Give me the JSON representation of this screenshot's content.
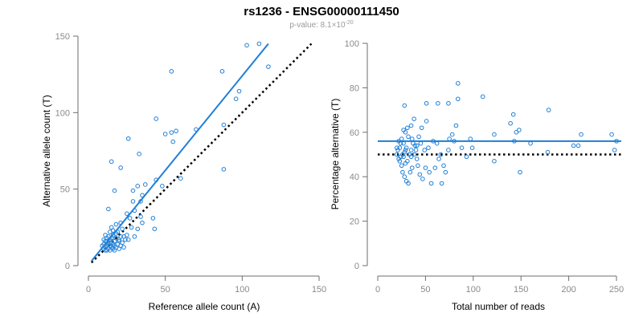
{
  "title": "rs1236 - ENSG00000111450",
  "subtitle_prefix": "p-value: 8.1×10",
  "subtitle_exp": "-20",
  "colors": {
    "points": "#1f7fd6",
    "fit": "#1f7fd6",
    "reference": "#000000",
    "axis": "#6d6d6d"
  },
  "chart_data": [
    {
      "type": "scatter",
      "xlabel": "Reference allele count (A)",
      "ylabel": "Alternative allele count (T)",
      "xlim": [
        0,
        150
      ],
      "ylim": [
        0,
        150
      ],
      "xticks": [
        "0",
        "50",
        "100",
        "150"
      ],
      "yticks": [
        "0",
        "50",
        "100",
        "150"
      ],
      "grid": false,
      "fit_line": {
        "x": [
          2,
          117
        ],
        "y": [
          3,
          145
        ]
      },
      "reference_line": {
        "x": [
          2,
          145
        ],
        "y": [
          2,
          145
        ]
      },
      "points": [
        [
          111,
          145
        ],
        [
          103,
          144
        ],
        [
          117,
          130
        ],
        [
          98,
          114
        ],
        [
          96,
          109
        ],
        [
          87,
          127
        ],
        [
          88,
          92
        ],
        [
          88,
          63
        ],
        [
          54,
          127
        ],
        [
          70,
          89
        ],
        [
          57,
          88
        ],
        [
          54,
          87
        ],
        [
          55,
          81
        ],
        [
          50,
          86
        ],
        [
          44,
          96
        ],
        [
          26,
          83
        ],
        [
          33,
          73
        ],
        [
          15,
          68
        ],
        [
          21,
          64
        ],
        [
          37,
          53
        ],
        [
          44,
          56
        ],
        [
          60,
          57
        ],
        [
          48,
          52
        ],
        [
          32,
          52
        ],
        [
          29,
          49
        ],
        [
          17,
          49
        ],
        [
          35,
          46
        ],
        [
          34,
          42
        ],
        [
          29,
          42
        ],
        [
          30,
          36
        ],
        [
          34,
          32
        ],
        [
          42,
          31
        ],
        [
          25,
          34
        ],
        [
          27,
          31
        ],
        [
          35,
          28
        ],
        [
          21,
          28
        ],
        [
          18,
          27
        ],
        [
          13,
          37
        ],
        [
          28,
          25
        ],
        [
          32,
          24
        ],
        [
          43,
          24
        ],
        [
          22,
          24
        ],
        [
          25,
          20
        ],
        [
          19,
          22
        ],
        [
          15,
          25
        ],
        [
          26,
          17
        ],
        [
          30,
          19
        ],
        [
          20,
          17
        ],
        [
          23,
          19
        ],
        [
          18,
          18
        ],
        [
          14,
          22
        ],
        [
          16,
          20
        ],
        [
          11,
          20
        ],
        [
          12,
          18
        ],
        [
          14,
          17
        ],
        [
          15,
          15
        ],
        [
          11,
          16
        ],
        [
          13,
          15
        ],
        [
          10,
          14
        ],
        [
          12,
          13
        ],
        [
          14,
          13
        ],
        [
          16,
          14
        ],
        [
          11,
          12
        ],
        [
          13,
          11
        ],
        [
          15,
          12
        ],
        [
          17,
          13
        ],
        [
          12,
          10
        ],
        [
          14,
          10
        ],
        [
          16,
          11
        ],
        [
          18,
          12
        ],
        [
          10,
          11
        ],
        [
          20,
          16
        ],
        [
          22,
          15
        ],
        [
          24,
          17
        ],
        [
          19,
          14
        ],
        [
          21,
          13
        ],
        [
          17,
          10
        ],
        [
          13,
          14
        ],
        [
          11,
          10
        ],
        [
          15,
          18
        ],
        [
          12,
          16
        ],
        [
          18,
          21
        ],
        [
          16,
          23
        ],
        [
          21,
          19
        ],
        [
          13,
          19
        ],
        [
          10,
          17
        ],
        [
          9,
          13
        ],
        [
          20,
          11
        ],
        [
          23,
          12
        ],
        [
          17,
          16
        ],
        [
          14,
          15
        ]
      ]
    },
    {
      "type": "scatter",
      "xlabel": "Total number of reads",
      "ylabel": "Percentage alternative (T)",
      "xlim": [
        0,
        250
      ],
      "ylim": [
        0,
        100
      ],
      "xticks": [
        "0",
        "50",
        "100",
        "150",
        "200",
        "250"
      ],
      "yticks": [
        "0",
        "20",
        "40",
        "60",
        "80",
        "100"
      ],
      "grid": false,
      "fit_line": {
        "x": [
          0,
          255
        ],
        "y": [
          56,
          56
        ]
      },
      "reference_line": {
        "x": [
          0,
          255
        ],
        "y": [
          50,
          50
        ]
      },
      "points": [
        [
          84,
          82
        ],
        [
          63,
          73
        ],
        [
          84,
          75
        ],
        [
          110,
          76
        ],
        [
          74,
          73
        ],
        [
          142,
          68
        ],
        [
          179,
          70
        ],
        [
          28,
          72
        ],
        [
          139,
          64
        ],
        [
          122,
          59
        ],
        [
          148,
          61
        ],
        [
          145,
          60
        ],
        [
          143,
          56
        ],
        [
          160,
          55
        ],
        [
          178,
          51
        ],
        [
          205,
          54
        ],
        [
          210,
          54
        ],
        [
          213,
          59
        ],
        [
          245,
          59
        ],
        [
          248,
          52
        ],
        [
          250,
          56
        ],
        [
          97,
          57
        ],
        [
          99,
          53
        ],
        [
          82,
          63
        ],
        [
          80,
          56
        ],
        [
          93,
          49
        ],
        [
          122,
          47
        ],
        [
          149,
          42
        ],
        [
          88,
          53
        ],
        [
          78,
          59
        ],
        [
          75,
          57
        ],
        [
          62,
          55
        ],
        [
          66,
          50
        ],
        [
          74,
          52
        ],
        [
          51,
          73
        ],
        [
          51,
          65
        ],
        [
          46,
          62
        ],
        [
          43,
          58
        ],
        [
          38,
          66
        ],
        [
          35,
          63
        ],
        [
          32,
          58
        ],
        [
          29,
          60
        ],
        [
          27,
          61
        ],
        [
          24,
          55
        ],
        [
          21,
          52
        ],
        [
          20,
          50
        ],
        [
          22,
          48
        ],
        [
          23,
          47
        ],
        [
          25,
          45
        ],
        [
          26,
          42
        ],
        [
          28,
          40
        ],
        [
          30,
          38
        ],
        [
          32,
          37
        ],
        [
          34,
          42
        ],
        [
          36,
          44
        ],
        [
          38,
          50
        ],
        [
          40,
          52
        ],
        [
          41,
          48
        ],
        [
          42,
          45
        ],
        [
          44,
          41
        ],
        [
          47,
          39
        ],
        [
          50,
          44
        ],
        [
          54,
          42
        ],
        [
          56,
          37
        ],
        [
          60,
          44
        ],
        [
          64,
          48
        ],
        [
          67,
          37
        ],
        [
          69,
          45
        ],
        [
          71,
          42
        ],
        [
          23,
          53
        ],
        [
          25,
          57
        ],
        [
          27,
          55
        ],
        [
          30,
          53
        ],
        [
          33,
          50
        ],
        [
          35,
          52
        ],
        [
          37,
          55
        ],
        [
          31,
          47
        ],
        [
          29,
          46
        ],
        [
          24,
          49
        ],
        [
          26,
          50
        ],
        [
          28,
          51
        ],
        [
          35,
          49
        ],
        [
          39,
          54
        ],
        [
          45,
          55
        ],
        [
          49,
          52
        ],
        [
          53,
          53
        ],
        [
          58,
          56
        ],
        [
          20,
          53
        ],
        [
          22,
          56
        ],
        [
          31,
          62
        ],
        [
          36,
          57
        ],
        [
          41,
          54
        ],
        [
          27,
          49
        ],
        [
          29,
          52
        ]
      ]
    }
  ]
}
